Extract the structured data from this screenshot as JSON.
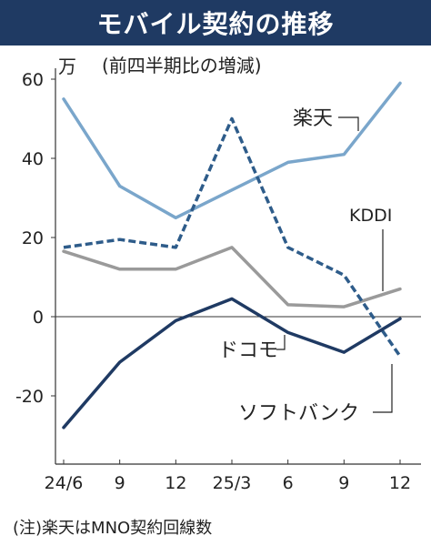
{
  "title": "モバイル契約の推移",
  "note": "(注)楽天はMNO契約回線数",
  "colors": {
    "title_bg": "#1f3a63",
    "rakuten": "#7aa6cb",
    "softbank": "#2e5c8a",
    "kddi": "#9a9a9a",
    "docomo": "#1f3a63"
  },
  "chart_data": {
    "type": "line",
    "subtitle": "(前四半期比の増減)",
    "ylabel": "万",
    "x": [
      "24/6",
      "9",
      "12",
      "25/3",
      "6",
      "9",
      "12"
    ],
    "yticks": [
      60,
      40,
      20,
      0,
      -20
    ],
    "ylim": [
      -35,
      65
    ],
    "grid": false,
    "series": [
      {
        "name": "楽天",
        "values": [
          55,
          33,
          25,
          32,
          39,
          41,
          59
        ],
        "color": "#7aa6cb",
        "dashed": false
      },
      {
        "name": "ソフトバンク",
        "values": [
          17.5,
          19.5,
          17.5,
          50,
          17.5,
          10.5,
          -10
        ],
        "color": "#2e5c8a",
        "dashed": true
      },
      {
        "name": "KDDI",
        "values": [
          16.5,
          12,
          12,
          17.5,
          3,
          2.5,
          7
        ],
        "color": "#9a9a9a",
        "dashed": false
      },
      {
        "name": "ドコモ",
        "values": [
          -28,
          -11.5,
          -1,
          4.5,
          -4,
          -9,
          -0.5
        ],
        "color": "#1f3a63",
        "dashed": false
      }
    ]
  }
}
